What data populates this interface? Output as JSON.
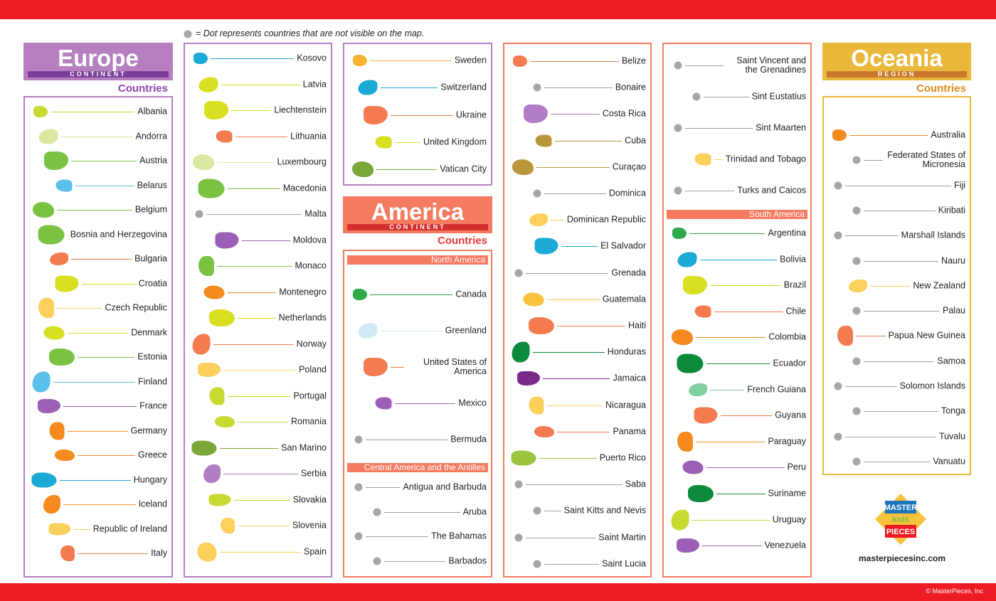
{
  "legend": "= Dot represents countries that are not visible on the map.",
  "europe": {
    "title": "Europe",
    "label": "CONTINENT",
    "countries_label": "Countries"
  },
  "america": {
    "title": "America",
    "label": "CONTINENT",
    "countries_label": "Countries"
  },
  "oceania": {
    "title": "Oceania",
    "label": "REGION",
    "countries_label": "Countries"
  },
  "panels": [
    {
      "groups": [
        {
          "items": [
            {
              "name": "Albania",
              "marker": "shape",
              "color": "#c8d930"
            },
            {
              "name": "Andorra",
              "marker": "shape",
              "color": "#d9e8a0"
            },
            {
              "name": "Austria",
              "marker": "shape",
              "color": "#7cc242"
            },
            {
              "name": "Belarus",
              "marker": "shape",
              "color": "#5bc0eb"
            },
            {
              "name": "Belgium",
              "marker": "shape",
              "color": "#7cc242"
            },
            {
              "name": "Bosnia and Herzegovina",
              "marker": "shape",
              "color": "#7cc242"
            },
            {
              "name": "Bulgaria",
              "marker": "shape",
              "color": "#f47b50"
            },
            {
              "name": "Croatia",
              "marker": "shape",
              "color": "#d9e021"
            },
            {
              "name": "Czech Republic",
              "marker": "shape",
              "color": "#fbd15b"
            },
            {
              "name": "Denmark",
              "marker": "shape",
              "color": "#d9e021"
            },
            {
              "name": "Estonia",
              "marker": "shape",
              "color": "#7cc242"
            },
            {
              "name": "Finland",
              "marker": "shape",
              "color": "#5bc0eb"
            },
            {
              "name": "France",
              "marker": "shape",
              "color": "#9b5fb5"
            },
            {
              "name": "Germany",
              "marker": "shape",
              "color": "#f58a1f"
            },
            {
              "name": "Greece",
              "marker": "shape",
              "color": "#f58a1f"
            },
            {
              "name": "Hungary",
              "marker": "shape",
              "color": "#1ba9d6"
            },
            {
              "name": "Iceland",
              "marker": "shape",
              "color": "#f58a1f"
            },
            {
              "name": "Republic of Ireland",
              "marker": "shape",
              "color": "#fbd15b"
            },
            {
              "name": "Italy",
              "marker": "shape",
              "color": "#f47b50"
            }
          ]
        }
      ]
    },
    {
      "groups": [
        {
          "items": [
            {
              "name": "Kosovo",
              "marker": "shape",
              "color": "#1ba9d6"
            },
            {
              "name": "Latvia",
              "marker": "shape",
              "color": "#d9e021"
            },
            {
              "name": "Liechtenstein",
              "marker": "shape",
              "color": "#d9e021"
            },
            {
              "name": "Lithuania",
              "marker": "shape",
              "color": "#f47b50"
            },
            {
              "name": "Luxembourg",
              "marker": "shape",
              "color": "#d9e8a0"
            },
            {
              "name": "Macedonia",
              "marker": "shape",
              "color": "#7cc242"
            },
            {
              "name": "Malta",
              "marker": "dot",
              "color": "#a6a6a6"
            },
            {
              "name": "Moldova",
              "marker": "shape",
              "color": "#9b5fb5"
            },
            {
              "name": "Monaco",
              "marker": "shape",
              "color": "#7cc242"
            },
            {
              "name": "Montenegro",
              "marker": "shape",
              "color": "#f58a1f"
            },
            {
              "name": "Netherlands",
              "marker": "shape",
              "color": "#d9e021"
            },
            {
              "name": "Norway",
              "marker": "shape",
              "color": "#f47b50"
            },
            {
              "name": "Poland",
              "marker": "shape",
              "color": "#fbd15b"
            },
            {
              "name": "Portugal",
              "marker": "shape",
              "color": "#c8d930"
            },
            {
              "name": "Romania",
              "marker": "shape",
              "color": "#c8d930"
            },
            {
              "name": "San Marino",
              "marker": "shape",
              "color": "#7aa63a"
            },
            {
              "name": "Serbia",
              "marker": "shape",
              "color": "#b07cc6"
            },
            {
              "name": "Slovakia",
              "marker": "shape",
              "color": "#c8d930"
            },
            {
              "name": "Slovenia",
              "marker": "shape",
              "color": "#fbd15b"
            },
            {
              "name": "Spain",
              "marker": "shape",
              "color": "#fbd15b"
            }
          ]
        }
      ]
    },
    {
      "groups": [
        {
          "items": [
            {
              "name": "Sweden",
              "marker": "shape",
              "color": "#f9b233"
            },
            {
              "name": "Switzerland",
              "marker": "shape",
              "color": "#1ba9d6"
            },
            {
              "name": "Ukraine",
              "marker": "shape",
              "color": "#f47b50"
            },
            {
              "name": "United Kingdom",
              "marker": "shape",
              "color": "#d9e021"
            },
            {
              "name": "Vatican City",
              "marker": "shape",
              "color": "#7aa63a"
            }
          ]
        }
      ]
    },
    {
      "groups": [
        {
          "heading": "North America",
          "items": [
            {
              "name": "Canada",
              "marker": "shape",
              "color": "#2eaa4a"
            },
            {
              "name": "Greenland",
              "marker": "shape",
              "color": "#cfe9f5"
            },
            {
              "name": "United States of America",
              "marker": "shape",
              "color": "#f47b50"
            },
            {
              "name": "Mexico",
              "marker": "shape",
              "color": "#9b5fb5"
            },
            {
              "name": "Bermuda",
              "marker": "dot",
              "color": "#a6a6a6"
            }
          ]
        },
        {
          "heading": "Central America and the Antilles",
          "items": [
            {
              "name": "Antigua and Barbuda",
              "marker": "dot",
              "color": "#a6a6a6"
            },
            {
              "name": "Aruba",
              "marker": "dot",
              "color": "#a6a6a6"
            },
            {
              "name": "The Bahamas",
              "marker": "dot",
              "color": "#a6a6a6"
            },
            {
              "name": "Barbados",
              "marker": "dot",
              "color": "#a6a6a6"
            }
          ]
        }
      ]
    },
    {
      "groups": [
        {
          "items": [
            {
              "name": "Belize",
              "marker": "shape",
              "color": "#f47b50"
            },
            {
              "name": "Bonaire",
              "marker": "dot",
              "color": "#a6a6a6"
            },
            {
              "name": "Costa Rica",
              "marker": "shape",
              "color": "#b07cc6"
            },
            {
              "name": "Cuba",
              "marker": "shape",
              "color": "#b8973a"
            },
            {
              "name": "Curaçao",
              "marker": "shape",
              "color": "#b8973a"
            },
            {
              "name": "Dominica",
              "marker": "dot",
              "color": "#a6a6a6"
            },
            {
              "name": "Dominican Republic",
              "marker": "shape",
              "color": "#fbd15b"
            },
            {
              "name": "El Salvador",
              "marker": "shape",
              "color": "#1ba9d6"
            },
            {
              "name": "Grenada",
              "marker": "dot",
              "color": "#a6a6a6"
            },
            {
              "name": "Guatemala",
              "marker": "shape",
              "color": "#f9c33b"
            },
            {
              "name": "Haiti",
              "marker": "shape",
              "color": "#f47b50"
            },
            {
              "name": "Honduras",
              "marker": "shape",
              "color": "#0a8a3a"
            },
            {
              "name": "Jamaica",
              "marker": "shape",
              "color": "#7a2a8a"
            },
            {
              "name": "Nicaragua",
              "marker": "shape",
              "color": "#fbd15b"
            },
            {
              "name": "Panama",
              "marker": "shape",
              "color": "#f47b50"
            },
            {
              "name": "Puerto Rico",
              "marker": "shape",
              "color": "#9bc53d"
            },
            {
              "name": "Saba",
              "marker": "dot",
              "color": "#a6a6a6"
            },
            {
              "name": "Saint Kitts and Nevis",
              "marker": "dot",
              "color": "#a6a6a6"
            },
            {
              "name": "Saint Martin",
              "marker": "dot",
              "color": "#a6a6a6"
            },
            {
              "name": "Saint Lucia",
              "marker": "dot",
              "color": "#a6a6a6"
            }
          ]
        }
      ]
    },
    {
      "groups": [
        {
          "items": [
            {
              "name": "Saint Vincent and the Grenadines",
              "marker": "dot",
              "color": "#a6a6a6"
            },
            {
              "name": "Sint Eustatius",
              "marker": "dot",
              "color": "#a6a6a6"
            },
            {
              "name": "Sint Maarten",
              "marker": "dot",
              "color": "#a6a6a6"
            },
            {
              "name": "Trinidad and Tobago",
              "marker": "shape",
              "color": "#fbd15b"
            },
            {
              "name": "Turks and Caicos",
              "marker": "dot",
              "color": "#a6a6a6"
            }
          ]
        },
        {
          "heading": "South America",
          "items": [
            {
              "name": "Argentina",
              "marker": "shape",
              "color": "#2eaa4a"
            },
            {
              "name": "Bolivia",
              "marker": "shape",
              "color": "#1ba9d6"
            },
            {
              "name": "Brazil",
              "marker": "shape",
              "color": "#d9e021"
            },
            {
              "name": "Chile",
              "marker": "shape",
              "color": "#f47b50"
            },
            {
              "name": "Colombia",
              "marker": "shape",
              "color": "#f58a1f"
            },
            {
              "name": "Ecuador",
              "marker": "shape",
              "color": "#0a8a3a"
            },
            {
              "name": "French Guiana",
              "marker": "shape",
              "color": "#7fcfa0"
            },
            {
              "name": "Guyana",
              "marker": "shape",
              "color": "#f47b50"
            },
            {
              "name": "Paraguay",
              "marker": "shape",
              "color": "#f58a1f"
            },
            {
              "name": "Peru",
              "marker": "shape",
              "color": "#9b5fb5"
            },
            {
              "name": "Suriname",
              "marker": "shape",
              "color": "#0a8a3a"
            },
            {
              "name": "Uruguay",
              "marker": "shape",
              "color": "#c8d930"
            },
            {
              "name": "Venezuela",
              "marker": "shape",
              "color": "#9b5fb5"
            }
          ]
        }
      ]
    },
    {
      "groups": [
        {
          "items": [
            {
              "name": "Australia",
              "marker": "shape",
              "color": "#f58a1f"
            },
            {
              "name": "Federated States of Micronesia",
              "marker": "dot",
              "color": "#a6a6a6"
            },
            {
              "name": "Fiji",
              "marker": "dot",
              "color": "#a6a6a6"
            },
            {
              "name": "Kiribati",
              "marker": "dot",
              "color": "#a6a6a6"
            },
            {
              "name": "Marshall Islands",
              "marker": "dot",
              "color": "#a6a6a6"
            },
            {
              "name": "Nauru",
              "marker": "dot",
              "color": "#a6a6a6"
            },
            {
              "name": "New Zealand",
              "marker": "shape",
              "color": "#fbd15b"
            },
            {
              "name": "Palau",
              "marker": "dot",
              "color": "#a6a6a6"
            },
            {
              "name": "Papua New Guinea",
              "marker": "shape",
              "color": "#f47b50"
            },
            {
              "name": "Samoa",
              "marker": "dot",
              "color": "#a6a6a6"
            },
            {
              "name": "Solomon Islands",
              "marker": "dot",
              "color": "#a6a6a6"
            },
            {
              "name": "Tonga",
              "marker": "dot",
              "color": "#a6a6a6"
            },
            {
              "name": "Tuvalu",
              "marker": "dot",
              "color": "#a6a6a6"
            },
            {
              "name": "Vanuatu",
              "marker": "dot",
              "color": "#a6a6a6"
            }
          ]
        }
      ]
    }
  ],
  "logo": {
    "top": "MASTER",
    "middle": "kids",
    "bottom": "PIECES"
  },
  "website": "masterpiecesinc.com",
  "copyright": "© MasterPieces, Inc"
}
